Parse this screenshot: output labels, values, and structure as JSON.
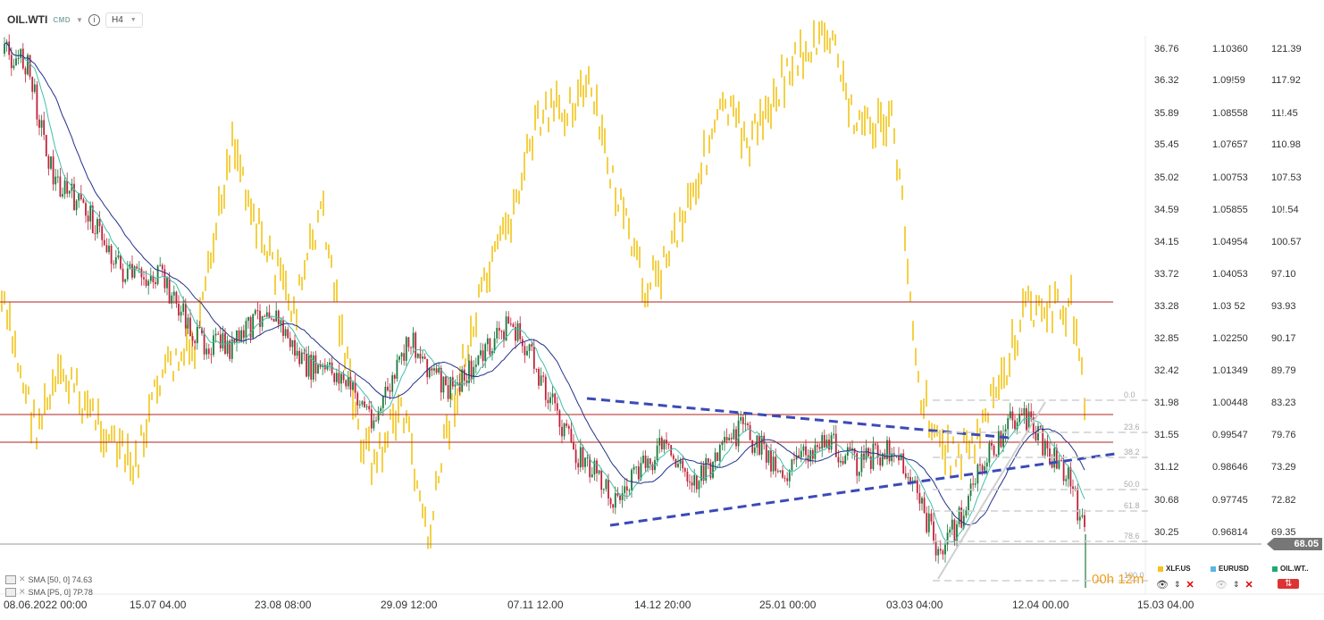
{
  "header": {
    "symbol": "OIL.WTI",
    "class": "CMD",
    "timeframe": "H4"
  },
  "indicators": [
    {
      "label": "SMA [50, 0] 74.63"
    },
    {
      "label": "SMA [P5, 0] 7P.78"
    }
  ],
  "timer": "00h 12m",
  "last_price": "68.05",
  "price_tags": [
    {
      "label": "94.24",
      "color": "#a30000"
    },
    {
      "label": "82.00",
      "color": "#a30000"
    },
    {
      "label": "79.00",
      "color": "#a30000"
    }
  ],
  "axis_left": [
    "36.76",
    "36.32",
    "35.89",
    "35.45",
    "35.02",
    "34.59",
    "34.15",
    "33.72",
    "33.28",
    "32.85",
    "32.42",
    "31.98",
    "31.55",
    "31.12",
    "30.68",
    "30.25"
  ],
  "axis_mid": [
    "1.10360",
    "1.09!59",
    "1.08558",
    "1.07657",
    "1.00753",
    "1.05855",
    "1.04954",
    "1.04053",
    "1.03 52",
    "1.02250",
    "1.01349",
    "1.00448",
    "0.99547",
    "0.98646",
    "0.97745",
    "0.96814"
  ],
  "axis_right": [
    "121.39",
    "117.92",
    "11!.45",
    "110.98",
    "107.53",
    "10!.54",
    "100.57",
    "97.10",
    "93.93",
    "90.17",
    "89.79",
    "83.23",
    "79.76",
    "73.29",
    "72.82",
    "69.35"
  ],
  "fib_levels": [
    "0.0",
    "23.6",
    "38.2",
    "50.0",
    "61.8",
    "78.6",
    "100.0"
  ],
  "x_labels": [
    "08.06.2022 00:00",
    "15.07 04.00",
    "23.08 08:00",
    "29.09 12:00",
    "07.11 12.00",
    "14.12 20:00",
    "25.01 00:00",
    "03.03 04:00",
    "12.04 00.00",
    "15.03 04.00"
  ],
  "legend": [
    {
      "label": "XLF.US",
      "color": "#f2c418"
    },
    {
      "label": "EURUSD",
      "color": "#56b8e8"
    },
    {
      "label": "OIL.WT..",
      "color": "#23a870"
    }
  ],
  "colors": {
    "candle_up": "#1a7a3a",
    "candle_down": "#c0223a",
    "overlay": "#f2c418",
    "sma_fast": "#3fc0a8",
    "sma_slow": "#23308a",
    "trend": "#3b4ab8",
    "hline": "#b22222"
  }
}
